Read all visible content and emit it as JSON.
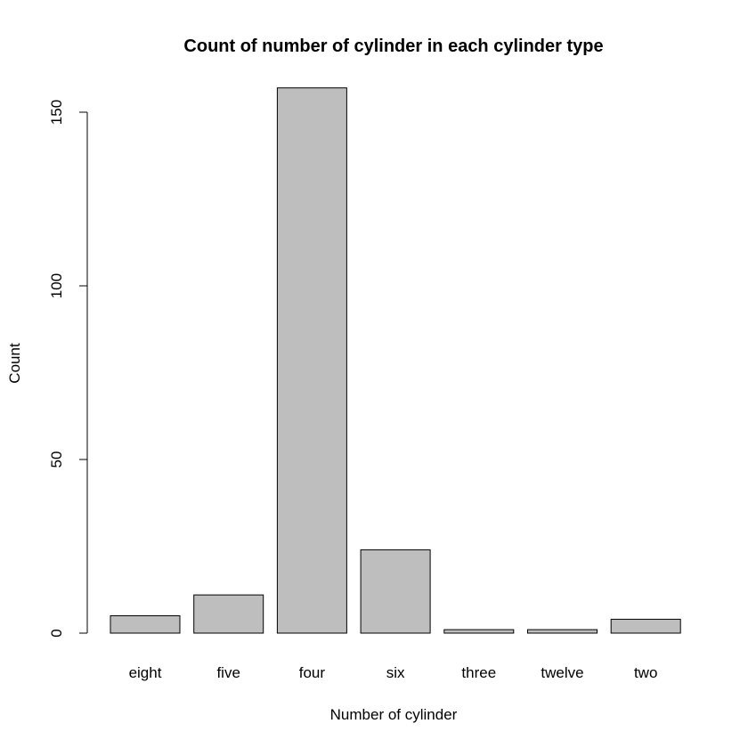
{
  "chart_data": {
    "type": "bar",
    "title": "Count of number of cylinder in each cylinder type",
    "xlabel": "Number of cylinder",
    "ylabel": "Count",
    "categories": [
      "eight",
      "five",
      "four",
      "six",
      "three",
      "twelve",
      "two"
    ],
    "values": [
      5,
      11,
      157,
      24,
      1,
      1,
      4
    ],
    "ylim": [
      0,
      150
    ],
    "yticks": [
      0,
      50,
      100,
      150
    ],
    "bar_color": "#bebebe",
    "grid": false,
    "legend": false
  }
}
